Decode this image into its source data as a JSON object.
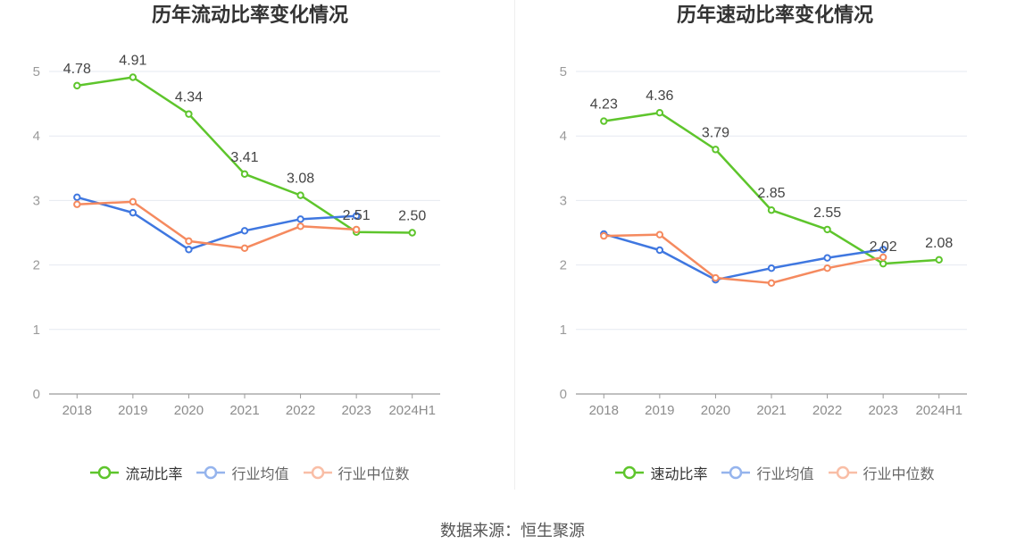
{
  "footer": {
    "source": "数据来源：恒生聚源"
  },
  "chart_data": [
    {
      "type": "line",
      "title": "历年流动比率变化情况",
      "categories": [
        "2018",
        "2019",
        "2020",
        "2021",
        "2022",
        "2023",
        "2024H1"
      ],
      "ylim": [
        0,
        5
      ],
      "yticks": [
        0,
        1,
        2,
        3,
        4,
        5
      ],
      "grid": true,
      "legend": "bottom",
      "series": [
        {
          "name": "流动比率",
          "color": "#5ec52c",
          "data_labels": true,
          "values": [
            4.78,
            4.91,
            4.34,
            3.41,
            3.08,
            2.51,
            2.5
          ]
        },
        {
          "name": "行业均值",
          "color": "#3f77e0",
          "values": [
            3.05,
            2.81,
            2.24,
            2.53,
            2.71,
            2.76,
            null
          ]
        },
        {
          "name": "行业中位数",
          "color": "#f58a5f",
          "values": [
            2.94,
            2.98,
            2.37,
            2.26,
            2.6,
            2.55,
            null
          ]
        }
      ]
    },
    {
      "type": "line",
      "title": "历年速动比率变化情况",
      "categories": [
        "2018",
        "2019",
        "2020",
        "2021",
        "2022",
        "2023",
        "2024H1"
      ],
      "ylim": [
        0,
        5
      ],
      "yticks": [
        0,
        1,
        2,
        3,
        4,
        5
      ],
      "grid": true,
      "legend": "bottom",
      "series": [
        {
          "name": "速动比率",
          "color": "#5ec52c",
          "data_labels": true,
          "values": [
            4.23,
            4.36,
            3.79,
            2.85,
            2.55,
            2.02,
            2.08
          ]
        },
        {
          "name": "行业均值",
          "color": "#3f77e0",
          "values": [
            2.48,
            2.23,
            1.77,
            1.95,
            2.11,
            2.24,
            null
          ]
        },
        {
          "name": "行业中位数",
          "color": "#f58a5f",
          "values": [
            2.45,
            2.47,
            1.8,
            1.72,
            1.95,
            2.12,
            null
          ]
        }
      ]
    }
  ]
}
